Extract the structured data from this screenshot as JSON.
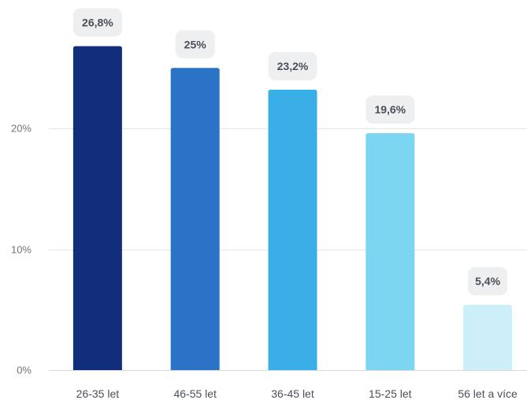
{
  "chart_data": {
    "type": "bar",
    "categories": [
      "26-35 let",
      "46-55 let",
      "36-45 let",
      "15-25 let",
      "56 let a více"
    ],
    "values": [
      26.8,
      25,
      23.2,
      19.6,
      5.4
    ],
    "data_labels": [
      "26,8%",
      "25%",
      "23,2%",
      "19,6%",
      "5,4%"
    ],
    "colors": [
      "#122d7c",
      "#2a73c6",
      "#3aaee6",
      "#7dd6f1",
      "#cdeffa"
    ],
    "y_ticks": [
      {
        "value": 0,
        "label": "0%"
      },
      {
        "value": 10,
        "label": "10%"
      },
      {
        "value": 20,
        "label": "20%"
      }
    ],
    "ylim": [
      0,
      30
    ],
    "grid": true,
    "title": "",
    "xlabel": "",
    "ylabel": ""
  }
}
